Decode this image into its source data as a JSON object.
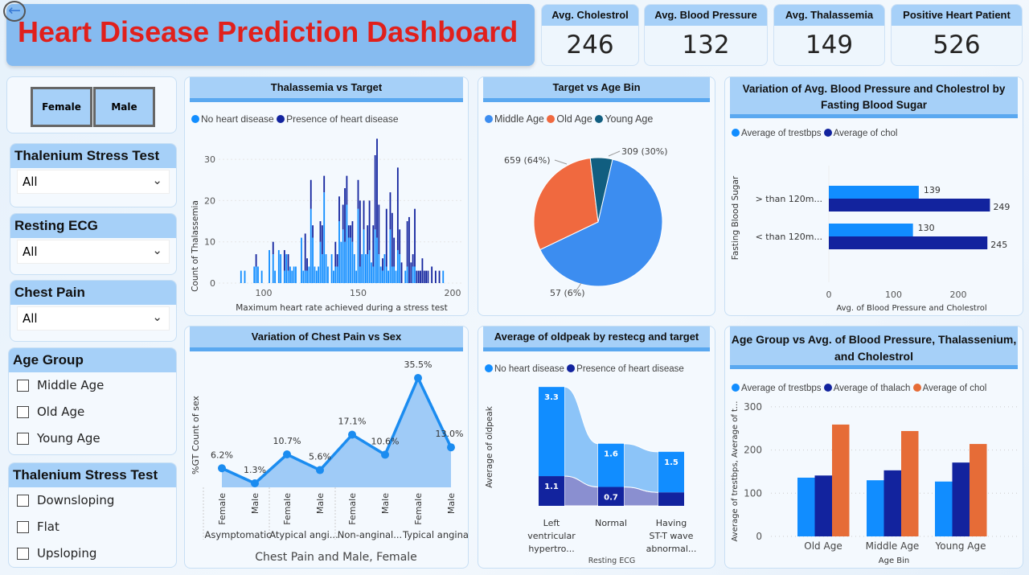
{
  "header": {
    "title": "Heart Disease Prediction Dashboard",
    "back_icon": "back-arrow-icon"
  },
  "kpis": [
    {
      "label": "Avg. Cholestrol",
      "value": "246"
    },
    {
      "label": "Avg. Blood Pressure",
      "value": "132"
    },
    {
      "label": "Avg. Thalassemia",
      "value": "149"
    },
    {
      "label": "Positive Heart Patient",
      "value": "526"
    }
  ],
  "filters": {
    "sex_buttons": [
      "Female",
      "Male"
    ],
    "thalenium": {
      "title": "Thalenium Stress Test",
      "value": "All"
    },
    "resting_ecg": {
      "title": "Resting ECG",
      "value": "All"
    },
    "chest_pain": {
      "title": "Chest Pain",
      "value": "All"
    },
    "age_group": {
      "title": "Age Group",
      "options": [
        "Middle Age",
        "Old Age",
        "Young Age"
      ]
    },
    "thalenium_list": {
      "title": "Thalenium Stress Test",
      "options": [
        "Downsloping",
        "Flat",
        "Upsloping"
      ]
    }
  },
  "colors": {
    "light_blue": "#118dff",
    "dark_blue": "#12239e",
    "orange": "#e66c37",
    "teal": "#115e80",
    "pie_blue": "#3c8df0",
    "pie_orange": "#f0693f"
  },
  "chart_data": [
    {
      "type": "bar",
      "stacked": true,
      "title": "Thalassemia vs Target",
      "xlabel": "Maximum heart rate achieved during a stress test",
      "ylabel": "Count of Thalassemia",
      "xlim": [
        80,
        200
      ],
      "ylim": [
        0,
        35
      ],
      "xticks": [
        "100",
        "150",
        "200"
      ],
      "yticks": [
        "0",
        "10",
        "20",
        "30"
      ],
      "legend": "top-left",
      "series": [
        {
          "name": "No heart disease"
        },
        {
          "name": "Presence of heart disease"
        }
      ],
      "points": [
        [
          88,
          3,
          0
        ],
        [
          90,
          3,
          0
        ],
        [
          95,
          4,
          0
        ],
        [
          96,
          4,
          3
        ],
        [
          97,
          4,
          0
        ],
        [
          99,
          3,
          0
        ],
        [
          103,
          8,
          0
        ],
        [
          105,
          7,
          3
        ],
        [
          106,
          3,
          0
        ],
        [
          108,
          8,
          0
        ],
        [
          109,
          7,
          0
        ],
        [
          111,
          3,
          5
        ],
        [
          112,
          7,
          0
        ],
        [
          113,
          3,
          4
        ],
        [
          114,
          4,
          0
        ],
        [
          115,
          3,
          0
        ],
        [
          116,
          4,
          0
        ],
        [
          117,
          4,
          0
        ],
        [
          120,
          11,
          0
        ],
        [
          121,
          3,
          0
        ],
        [
          122,
          3,
          9
        ],
        [
          123,
          3,
          3
        ],
        [
          124,
          4,
          0
        ],
        [
          125,
          18,
          7
        ],
        [
          126,
          11,
          3
        ],
        [
          127,
          4,
          0
        ],
        [
          128,
          3,
          0
        ],
        [
          129,
          4,
          0
        ],
        [
          130,
          10,
          5
        ],
        [
          131,
          7,
          7
        ],
        [
          132,
          22,
          4
        ],
        [
          133,
          7,
          0
        ],
        [
          134,
          4,
          0
        ],
        [
          136,
          7,
          0
        ],
        [
          137,
          3,
          0
        ],
        [
          138,
          4,
          6
        ],
        [
          139,
          4,
          3
        ],
        [
          140,
          15,
          6
        ],
        [
          141,
          10,
          0
        ],
        [
          142,
          13,
          6
        ],
        [
          143,
          10,
          13
        ],
        [
          144,
          19,
          7
        ],
        [
          145,
          11,
          3
        ],
        [
          146,
          11,
          3
        ],
        [
          147,
          10,
          5
        ],
        [
          148,
          7,
          0
        ],
        [
          149,
          3,
          0
        ],
        [
          150,
          18,
          7
        ],
        [
          151,
          4,
          16
        ],
        [
          152,
          7,
          0
        ],
        [
          153,
          13,
          7
        ],
        [
          154,
          7,
          0
        ],
        [
          155,
          7,
          7
        ],
        [
          156,
          8,
          12
        ],
        [
          157,
          5,
          0
        ],
        [
          158,
          4,
          10
        ],
        [
          159,
          13,
          18
        ],
        [
          160,
          11,
          24
        ],
        [
          161,
          7,
          12
        ],
        [
          162,
          4,
          0
        ],
        [
          163,
          3,
          3
        ],
        [
          164,
          7,
          0
        ],
        [
          165,
          4,
          14
        ],
        [
          166,
          3,
          0
        ],
        [
          167,
          13,
          9
        ],
        [
          168,
          4,
          13
        ],
        [
          169,
          4,
          7
        ],
        [
          170,
          3,
          0
        ],
        [
          171,
          8,
          20
        ],
        [
          172,
          7,
          6
        ],
        [
          173,
          0,
          5
        ],
        [
          175,
          3,
          0
        ],
        [
          176,
          4,
          11
        ],
        [
          177,
          0,
          16
        ],
        [
          178,
          0,
          5
        ],
        [
          179,
          4,
          3
        ],
        [
          180,
          4,
          14
        ],
        [
          181,
          0,
          3
        ],
        [
          182,
          0,
          3
        ],
        [
          183,
          0,
          3
        ],
        [
          184,
          0,
          6
        ],
        [
          185,
          0,
          3
        ],
        [
          186,
          0,
          3
        ],
        [
          187,
          0,
          3
        ],
        [
          189,
          0,
          4
        ],
        [
          191,
          0,
          3
        ],
        [
          193,
          0,
          3
        ],
        [
          195,
          3,
          0
        ]
      ]
    },
    {
      "type": "pie",
      "title": "Target vs Age Bin",
      "legend": "top-left",
      "slices": [
        {
          "name": "Middle Age",
          "value": 659,
          "label": "659 (64%)"
        },
        {
          "name": "Old Age",
          "value": 309,
          "label": "309 (30%)"
        },
        {
          "name": "Young Age",
          "value": 57,
          "label": "57 (6%)"
        }
      ]
    },
    {
      "type": "bar",
      "orientation": "horizontal",
      "title": "Variation of Avg. Blood Pressure and Cholestrol by Fasting Blood Sugar",
      "xlabel": "Avg. of Blood Pressure and Cholestrol",
      "ylabel": "Fasting Blood Sugar",
      "xticks": [
        "0",
        "100",
        "200"
      ],
      "legend": "top-left",
      "categories": [
        "> than 120m...",
        "< than 120m..."
      ],
      "series": [
        {
          "name": "Average of trestbps",
          "values": [
            139,
            130
          ]
        },
        {
          "name": "Average of chol",
          "values": [
            249,
            245
          ]
        }
      ]
    },
    {
      "type": "line",
      "area": true,
      "title": "Variation of Chest Pain vs Sex",
      "xlabel": "Chest Pain and Male, Female",
      "ylabel": "%GT Count of sex",
      "groups": [
        "Asymptomatic",
        "Atypical angi...",
        "Non-anginal...",
        "Typical angina"
      ],
      "categories": [
        "Female",
        "Male",
        "Female",
        "Male",
        "Female",
        "Male",
        "Female",
        "Male"
      ],
      "values": [
        6.2,
        1.3,
        10.7,
        5.6,
        17.1,
        10.6,
        35.5,
        13.0
      ],
      "labels": [
        "6.2%",
        "1.3%",
        "10.7%",
        "5.6%",
        "17.1%",
        "10.6%",
        "35.5%",
        "13.0%"
      ]
    },
    {
      "type": "ribbon",
      "title": "Average of oldpeak by restecg and target",
      "xlabel": "Resting ECG",
      "ylabel": "Average of oldpeak",
      "legend": "top-left",
      "categories": [
        [
          "Left",
          "ventricular",
          "hypertro..."
        ],
        [
          "Normal"
        ],
        [
          "Having",
          "ST-T wave",
          "abnormal..."
        ]
      ],
      "series": [
        {
          "name": "No heart disease",
          "values": [
            3.3,
            1.6,
            1.5
          ],
          "labels": [
            "3.3",
            "1.6",
            "1.5"
          ]
        },
        {
          "name": "Presence of heart disease",
          "values": [
            1.1,
            0.7,
            0.5
          ],
          "labels": [
            "1.1",
            "0.7",
            ""
          ]
        }
      ]
    },
    {
      "type": "bar",
      "title": "Age Group vs Avg. of Blood Pressure, Thalassenium, and Cholestrol",
      "xlabel": "Age Bin",
      "ylabel": "Average of trestbps, Average of t...",
      "ylim": [
        0,
        300
      ],
      "yticks": [
        "0",
        "100",
        "200",
        "300"
      ],
      "grid": true,
      "legend": "top-left",
      "categories": [
        "Old Age",
        "Middle Age",
        "Young Age"
      ],
      "series": [
        {
          "name": "Average of trestbps",
          "values": [
            136,
            130,
            127
          ]
        },
        {
          "name": "Average of thalach",
          "values": [
            141,
            153,
            171
          ]
        },
        {
          "name": "Average of chol",
          "values": [
            259,
            244,
            214
          ]
        }
      ]
    }
  ]
}
